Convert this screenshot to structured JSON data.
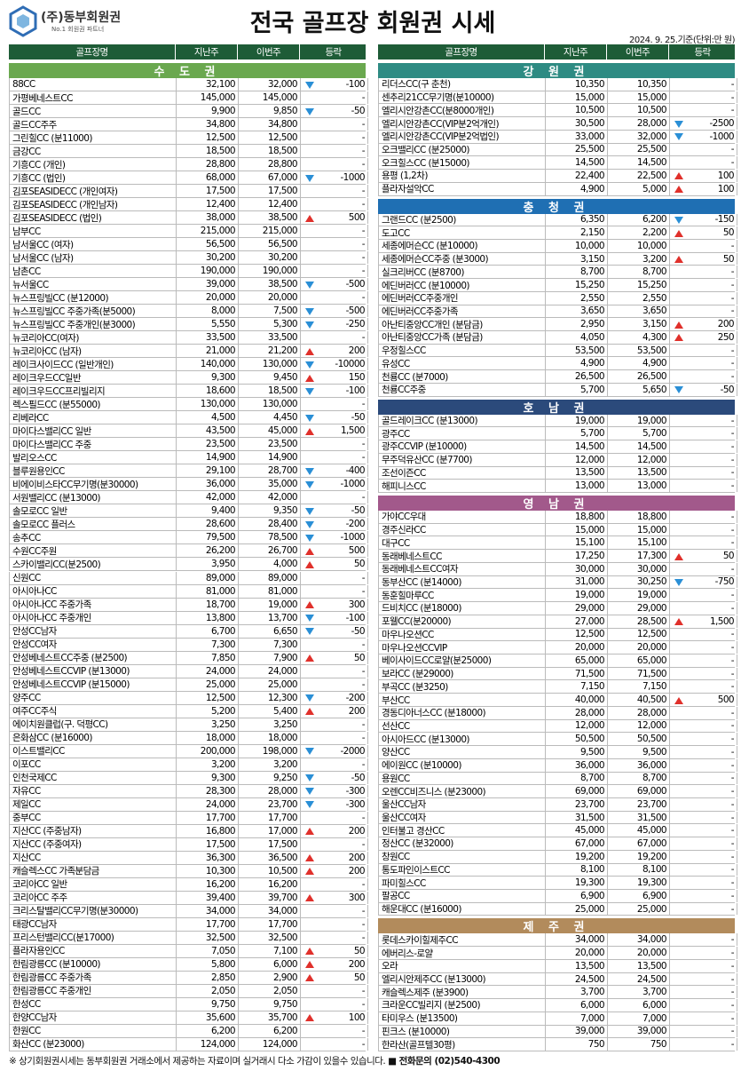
{
  "header": {
    "brand": "(주)동부회원권",
    "tagline": "No.1 회원권 파트너",
    "title": "전국 골프장 회원권 시세",
    "date": "2024. 9. 25.기준(단위:만 원)"
  },
  "columns": [
    "골프장명",
    "지난주",
    "이번주",
    "등락"
  ],
  "sections": [
    {
      "name": "수 도 권",
      "rows": [
        [
          "88CC",
          "32,100",
          "32,000",
          "-100"
        ],
        [
          "가평베네스트CC",
          "145,000",
          "145,000",
          "-"
        ],
        [
          "골드CC",
          "9,900",
          "9,850",
          "-50"
        ],
        [
          "골드CC주주",
          "34,800",
          "34,800",
          "-"
        ],
        [
          "그린힐CC (분11000)",
          "12,500",
          "12,500",
          "-"
        ],
        [
          "금강CC",
          "18,500",
          "18,500",
          "-"
        ],
        [
          "기흥CC (개인)",
          "28,800",
          "28,800",
          "-"
        ],
        [
          "기흥CC (법인)",
          "68,000",
          "67,000",
          "-1000"
        ],
        [
          "김포SEASIDECC (개인여자)",
          "17,500",
          "17,500",
          "-"
        ],
        [
          "김포SEASIDECC (개인남자)",
          "12,400",
          "12,400",
          "-"
        ],
        [
          "김포SEASIDECC (법인)",
          "38,000",
          "38,500",
          "500"
        ],
        [
          "남부CC",
          "215,000",
          "215,000",
          "-"
        ],
        [
          "남서울CC (여자)",
          "56,500",
          "56,500",
          "-"
        ],
        [
          "남서울CC (남자)",
          "30,200",
          "30,200",
          "-"
        ],
        [
          "남촌CC",
          "190,000",
          "190,000",
          "-"
        ],
        [
          "뉴서울CC",
          "39,000",
          "38,500",
          "-500"
        ],
        [
          "뉴스프링빌CC (분12000)",
          "20,000",
          "20,000",
          "-"
        ],
        [
          "뉴스프링빌CC 주중가족(분5000)",
          "8,000",
          "7,500",
          "-500"
        ],
        [
          "뉴스프링빌CC 주중개인(분3000)",
          "5,550",
          "5,300",
          "-250"
        ],
        [
          "뉴코리아CC(여자)",
          "33,500",
          "33,500",
          "-"
        ],
        [
          "뉴코리아CC (남자)",
          "21,000",
          "21,200",
          "200"
        ],
        [
          "레이크사이드CC (일반개인)",
          "140,000",
          "130,000",
          "-10000"
        ],
        [
          "레이크우드CC일반",
          "9,300",
          "9,450",
          "150"
        ],
        [
          "레이크우드CC프리빌리지",
          "18,600",
          "18,500",
          "-100"
        ],
        [
          "렉스필드CC (분55000)",
          "130,000",
          "130,000",
          "-"
        ],
        [
          "리베라CC",
          "4,500",
          "4,450",
          "-50"
        ],
        [
          "마이다스밸리CC 일반",
          "43,500",
          "45,000",
          "1,500"
        ],
        [
          "마이다스밸리CC 주중",
          "23,500",
          "23,500",
          "-"
        ],
        [
          "발리오스CC",
          "14,900",
          "14,900",
          "-"
        ],
        [
          "블루원용인CC",
          "29,100",
          "28,700",
          "-400"
        ],
        [
          "비에이비스타CC무기명(분30000)",
          "36,000",
          "35,000",
          "-1000"
        ],
        [
          "서원밸리CC (분13000)",
          "42,000",
          "42,000",
          "-"
        ],
        [
          "솔모로CC 일반",
          "9,400",
          "9,350",
          "-50"
        ],
        [
          "솔모로CC 플러스",
          "28,600",
          "28,400",
          "-200"
        ],
        [
          "송추CC",
          "79,500",
          "78,500",
          "-1000"
        ],
        [
          "수원CC주원",
          "26,200",
          "26,700",
          "500"
        ],
        [
          "스카이밸리CC(분2500)",
          "3,950",
          "4,000",
          "50"
        ],
        [
          "신원CC",
          "89,000",
          "89,000",
          "-"
        ],
        [
          "아시아나CC",
          "81,000",
          "81,000",
          "-"
        ],
        [
          "아시아나CC 주중가족",
          "18,700",
          "19,000",
          "300"
        ],
        [
          "아시아나CC 주중개인",
          "13,800",
          "13,700",
          "-100"
        ],
        [
          "안성CC남자",
          "6,700",
          "6,650",
          "-50"
        ],
        [
          "안성CC여자",
          "7,300",
          "7,300",
          "-"
        ],
        [
          "안성베네스트CC주중 (분2500)",
          "7,850",
          "7,900",
          "50"
        ],
        [
          "안성베네스트CCVIP (분13000)",
          "24,000",
          "24,000",
          "-"
        ],
        [
          "안성베네스트CCVIP (분15000)",
          "25,000",
          "25,000",
          "-"
        ],
        [
          "양주CC",
          "12,500",
          "12,300",
          "-200"
        ],
        [
          "여주CC주식",
          "5,200",
          "5,400",
          "200"
        ],
        [
          "에이치원클럽(구. 덕평CC)",
          "3,250",
          "3,250",
          "-"
        ],
        [
          "은화삼CC (분16000)",
          "18,000",
          "18,000",
          "-"
        ],
        [
          "이스트밸리CC",
          "200,000",
          "198,000",
          "-2000"
        ],
        [
          "이포CC",
          "3,200",
          "3,200",
          "-"
        ],
        [
          "인천국제CC",
          "9,300",
          "9,250",
          "-50"
        ],
        [
          "자유CC",
          "28,300",
          "28,000",
          "-300"
        ],
        [
          "제일CC",
          "24,000",
          "23,700",
          "-300"
        ],
        [
          "중부CC",
          "17,700",
          "17,700",
          "-"
        ],
        [
          "지산CC (주중남자)",
          "16,800",
          "17,000",
          "200"
        ],
        [
          "지산CC (주중여자)",
          "17,500",
          "17,500",
          "-"
        ],
        [
          "지산CC",
          "36,300",
          "36,500",
          "200"
        ],
        [
          "캐슬렉스CC 가족분담금",
          "10,300",
          "10,500",
          "200"
        ],
        [
          "코리아CC 일반",
          "16,200",
          "16,200",
          "-"
        ],
        [
          "코리아CC 주주",
          "39,400",
          "39,700",
          "300"
        ],
        [
          "크리스탈밸리CC무기명(분30000)",
          "34,000",
          "34,000",
          "-"
        ],
        [
          "태광CC남자",
          "17,700",
          "17,700",
          "-"
        ],
        [
          "프리스턴밸리CC(분17000)",
          "32,500",
          "32,500",
          "-"
        ],
        [
          "플라자용인CC",
          "7,050",
          "7,100",
          "50"
        ],
        [
          "한림광릉CC (분10000)",
          "5,800",
          "6,000",
          "200"
        ],
        [
          "한림광릉CC 주중가족",
          "2,850",
          "2,900",
          "50"
        ],
        [
          "한림광릉CC 주중개인",
          "2,050",
          "2,050",
          "-"
        ],
        [
          "한성CC",
          "9,750",
          "9,750",
          "-"
        ],
        [
          "한양CC남자",
          "35,600",
          "35,700",
          "100"
        ],
        [
          "한원CC",
          "6,200",
          "6,200",
          "-"
        ],
        [
          "화산CC (분23000)",
          "124,000",
          "124,000",
          "-"
        ]
      ]
    },
    {
      "name": "강 원 권",
      "rows": [
        [
          "리더스CC(구 춘천)",
          "10,350",
          "10,350",
          "-"
        ],
        [
          "센추리21CC무기명(분10000)",
          "15,000",
          "15,000",
          "-"
        ],
        [
          "엘리시안강촌CC(분8000개인)",
          "10,500",
          "10,500",
          "-"
        ],
        [
          "엘리시안강촌CC(VIP분2억개인)",
          "30,500",
          "28,000",
          "-2500"
        ],
        [
          "엘리시안강촌CC(VIP분2억법인)",
          "33,000",
          "32,000",
          "-1000"
        ],
        [
          "오크밸리CC (분25000)",
          "25,500",
          "25,500",
          "-"
        ],
        [
          "오크힐스CC (분15000)",
          "14,500",
          "14,500",
          "-"
        ],
        [
          "용평 (1,2차)",
          "22,400",
          "22,500",
          "100"
        ],
        [
          "플라자설악CC",
          "4,900",
          "5,000",
          "100"
        ]
      ]
    },
    {
      "name": "충 청 권",
      "rows": [
        [
          "그랜드CC (분2500)",
          "6,350",
          "6,200",
          "-150"
        ],
        [
          "도고CC",
          "2,150",
          "2,200",
          "50"
        ],
        [
          "세종에머슨CC (분10000)",
          "10,000",
          "10,000",
          "-"
        ],
        [
          "세종에머슨CC주중 (분3000)",
          "3,150",
          "3,200",
          "50"
        ],
        [
          "실크리버CC (분8700)",
          "8,700",
          "8,700",
          "-"
        ],
        [
          "에딘버러CC (분10000)",
          "15,250",
          "15,250",
          "-"
        ],
        [
          "에딘버러CC주중개인",
          "2,550",
          "2,550",
          "-"
        ],
        [
          "에딘버러CC주중가족",
          "3,650",
          "3,650",
          "-"
        ],
        [
          "아난티중앙CC개인 (분담금)",
          "2,950",
          "3,150",
          "200"
        ],
        [
          "아난티중앙CC가족 (분담금)",
          "4,050",
          "4,300",
          "250"
        ],
        [
          "우정힐스CC",
          "53,500",
          "53,500",
          "-"
        ],
        [
          "유성CC",
          "4,900",
          "4,900",
          "-"
        ],
        [
          "천룡CC (분7000)",
          "26,500",
          "26,500",
          "-"
        ],
        [
          "천룡CC주중",
          "5,700",
          "5,650",
          "-50"
        ]
      ]
    },
    {
      "name": "호 남 권",
      "rows": [
        [
          "골드레이크CC (분13000)",
          "19,000",
          "19,000",
          "-"
        ],
        [
          "광주CC",
          "5,700",
          "5,700",
          "-"
        ],
        [
          "광주CCVIP (분10000)",
          "14,500",
          "14,500",
          "-"
        ],
        [
          "무주덕유산CC (분7700)",
          "12,000",
          "12,000",
          "-"
        ],
        [
          "조선이즌CC",
          "13,500",
          "13,500",
          "-"
        ],
        [
          "해피니스CC",
          "13,000",
          "13,000",
          "-"
        ]
      ]
    },
    {
      "name": "영 남 권",
      "rows": [
        [
          "가야CC우대",
          "18,800",
          "18,800",
          "-"
        ],
        [
          "경주신라CC",
          "15,000",
          "15,000",
          "-"
        ],
        [
          "대구CC",
          "15,100",
          "15,100",
          "-"
        ],
        [
          "동래베네스트CC",
          "17,250",
          "17,300",
          "50"
        ],
        [
          "동래베네스트CC여자",
          "30,000",
          "30,000",
          "-"
        ],
        [
          "동부산CC (분14000)",
          "31,000",
          "30,250",
          "-750"
        ],
        [
          "동훈힐마루CC",
          "19,000",
          "19,000",
          "-"
        ],
        [
          "드비치CC (분18000)",
          "29,000",
          "29,000",
          "-"
        ],
        [
          "포웰CC(분20000)",
          "27,000",
          "28,500",
          "1,500"
        ],
        [
          "마우나오션CC",
          "12,500",
          "12,500",
          "-"
        ],
        [
          "마우나오션CCVIP",
          "20,000",
          "20,000",
          "-"
        ],
        [
          "베이사이드CC로얄(분25000)",
          "65,000",
          "65,000",
          "-"
        ],
        [
          "보라CC (분29000)",
          "71,500",
          "71,500",
          "-"
        ],
        [
          "부곡CC (분3250)",
          "7,150",
          "7,150",
          "-"
        ],
        [
          "부산CC",
          "40,000",
          "40,500",
          "500"
        ],
        [
          "경동디아너스CC (분18000)",
          "28,000",
          "28,000",
          "-"
        ],
        [
          "선산CC",
          "12,000",
          "12,000",
          "-"
        ],
        [
          "아시아드CC (분13000)",
          "50,500",
          "50,500",
          "-"
        ],
        [
          "양산CC",
          "9,500",
          "9,500",
          "-"
        ],
        [
          "에이원CC (분10000)",
          "36,000",
          "36,000",
          "-"
        ],
        [
          "용원CC",
          "8,700",
          "8,700",
          "-"
        ],
        [
          "오렌CC비즈니스 (분23000)",
          "69,000",
          "69,000",
          "-"
        ],
        [
          "울산CC남자",
          "23,700",
          "23,700",
          "-"
        ],
        [
          "울산CC여자",
          "31,500",
          "31,500",
          "-"
        ],
        [
          "인터불고 경산CC",
          "45,000",
          "45,000",
          "-"
        ],
        [
          "정산CC (분32000)",
          "67,000",
          "67,000",
          "-"
        ],
        [
          "창원CC",
          "19,200",
          "19,200",
          "-"
        ],
        [
          "통도파인이스트CC",
          "8,100",
          "8,100",
          "-"
        ],
        [
          "파미힐스CC",
          "19,300",
          "19,300",
          "-"
        ],
        [
          "팔공CC",
          "6,900",
          "6,900",
          "-"
        ],
        [
          "해운대CC (분16000)",
          "25,000",
          "25,000",
          "-"
        ]
      ]
    },
    {
      "name": "제 주 권",
      "rows": [
        [
          "롯데스카이힐제주CC",
          "34,000",
          "34,000",
          "-"
        ],
        [
          "에버리스-로얄",
          "20,000",
          "20,000",
          "-"
        ],
        [
          "오라",
          "13,500",
          "13,500",
          "-"
        ],
        [
          "엘리시안제주CC (분13000)",
          "24,500",
          "24,500",
          "-"
        ],
        [
          "캐슬렉스제주 (분3900)",
          "3,700",
          "3,700",
          "-"
        ],
        [
          "크라운CC빌리지 (분2500)",
          "6,000",
          "6,000",
          "-"
        ],
        [
          "타미우스 (분13500)",
          "7,000",
          "7,000",
          "-"
        ],
        [
          "핀크스 (분10000)",
          "39,000",
          "39,000",
          "-"
        ],
        [
          "한라산(골프텔30평)",
          "750",
          "750",
          "-"
        ]
      ]
    }
  ],
  "footer": {
    "note": "※ 상기회원권시세는 동부회원권 거래소에서 제공하는 자료이며 실거래시 다소 가감이 있을수 있습니다.",
    "phone": "■ 전화문의 (02)540-4300"
  }
}
